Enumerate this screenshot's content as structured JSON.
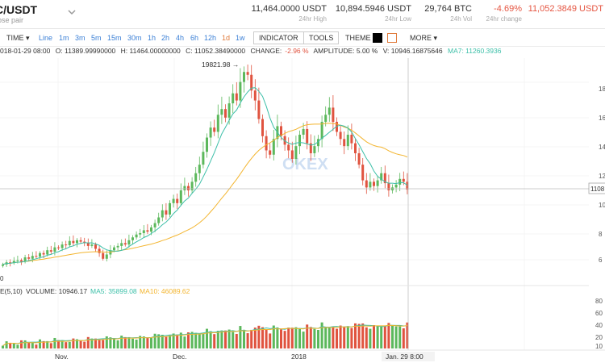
{
  "header": {
    "pair": "C/USDT",
    "pair_sub": "ose pair",
    "stats": [
      {
        "value": "11,464.0000 USDT",
        "label": "24hr High",
        "color": "normal"
      },
      {
        "value": "10,894.5946 USDT",
        "label": "24hr Low",
        "color": "normal"
      },
      {
        "value": "29,764 BTC",
        "label": "24h Vol",
        "color": "normal"
      },
      {
        "value": "-4.69%",
        "label": "24hr change",
        "color": "red"
      },
      {
        "value": "11,052.3849 USDT",
        "label": "",
        "color": "red"
      }
    ]
  },
  "toolbar": {
    "time_label": "TIME",
    "timeframes": [
      "Line",
      "1m",
      "3m",
      "5m",
      "15m",
      "30m",
      "1h",
      "2h",
      "4h",
      "6h",
      "12h",
      "1d",
      "1w"
    ],
    "active_timeframe": "1d",
    "indicator_label": "INDICATOR",
    "tools_label": "TOOLS",
    "theme_label": "THEME",
    "more_label": "MORE"
  },
  "info": {
    "date": "018-01-29  08:00",
    "open": "O: 11389.99990000",
    "high": "H: 11464.00000000",
    "close": "C: 11052.38490000",
    "change_label": "CHANGE:",
    "change_value": "-2.96 %",
    "amplitude": "AMPLITUDE: 5.00 %",
    "volume": "V: 10946.16875646",
    "ma7": "MA7: 11260.3936"
  },
  "volume_info": {
    "prefix": "E(5,10)",
    "volume": "VOLUME: 10946.17",
    "ma5": "MA5: 35899.08",
    "ma10": "MA10: 46089.62"
  },
  "annotations": {
    "peak": "19821.98 →",
    "current_price": "1108",
    "low_label": "0",
    "watermark": "OKEX"
  },
  "price_axis": {
    "ticks": [
      "18",
      "16",
      "14",
      "12",
      "10",
      "8",
      "6"
    ]
  },
  "volume_axis": {
    "ticks": [
      "80",
      "60",
      "40",
      "20",
      "10"
    ]
  },
  "time_axis": {
    "labels": [
      "Nov.",
      "Dec.",
      "2018"
    ],
    "current": "Jan. 29  8:00"
  },
  "colors": {
    "up": "#5cb85c",
    "down": "#e0533f",
    "ma_fast": "#3cbfa8",
    "ma_slow": "#f3b52f",
    "grid": "#eeeeee",
    "text": "#333333",
    "link": "#3a7fd6"
  },
  "chart_data": {
    "type": "candlestick",
    "y_unit": "USDT",
    "price_range": [
      5000,
      19821.98
    ],
    "candles_close": [
      5800,
      5950,
      5900,
      6050,
      6100,
      6000,
      6300,
      6200,
      6400,
      6350,
      6600,
      6500,
      6800,
      6700,
      7000,
      6950,
      7200,
      7150,
      7450,
      7300,
      7500,
      7400,
      7300,
      7100,
      7200,
      6900,
      6600,
      6200,
      6500,
      6800,
      7000,
      7100,
      7300,
      7200,
      7500,
      7700,
      7900,
      8000,
      8200,
      8100,
      8400,
      8700,
      9100,
      9600,
      9300,
      10100,
      10400,
      10100,
      11000,
      11300,
      11000,
      11600,
      12200,
      12800,
      13700,
      14700,
      15400,
      15100,
      16300,
      16700,
      16100,
      17100,
      17800,
      17300,
      18600,
      19300,
      19100,
      18000,
      17300,
      16000,
      14800,
      13800,
      13500,
      14600,
      15500,
      14800,
      14200,
      13800,
      13200,
      14100,
      14900,
      15300,
      14300,
      13600,
      14100,
      14600,
      15800,
      16300,
      16800,
      15800,
      15100,
      14600,
      14100,
      14900,
      14300,
      13600,
      12800,
      11700,
      11200,
      11600,
      11300,
      11700,
      12200,
      11500,
      11000,
      11200,
      11400,
      11800,
      11600,
      11050
    ],
    "volume_range": [
      0,
      90
    ]
  }
}
